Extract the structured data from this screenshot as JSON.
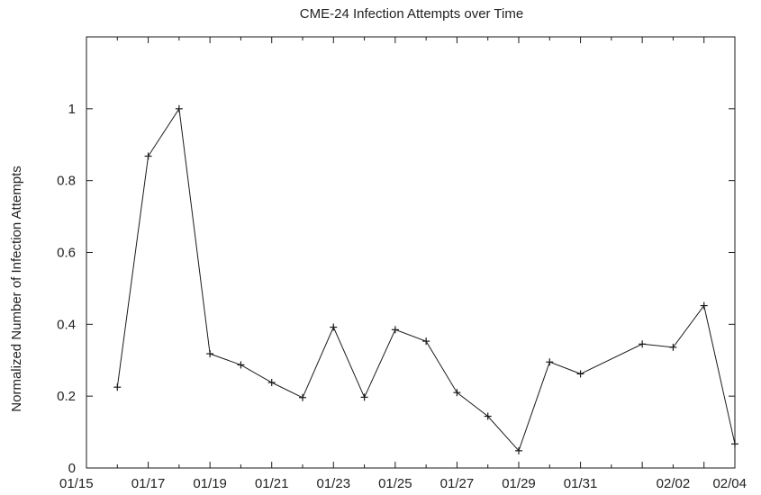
{
  "chart_data": {
    "type": "line",
    "title": "CME-24 Infection Attempts over Time",
    "xlabel": "",
    "ylabel": "Normalized Number of Infection Attempts",
    "x_tick_labels": [
      "01/15",
      "01/17",
      "01/19",
      "01/21",
      "01/23",
      "01/25",
      "01/27",
      "01/29",
      "01/31",
      "02/02",
      "02/04"
    ],
    "y_tick_labels": [
      "0",
      "0.2",
      "0.4",
      "0.6",
      "0.8",
      "1"
    ],
    "ylim": [
      0,
      1.2
    ],
    "grid": false,
    "legend": "none",
    "line_color": "#1a1a1a",
    "marker": "plus",
    "series": [
      {
        "x": [
          "01/16",
          "01/17",
          "01/18",
          "01/19",
          "01/20",
          "01/21",
          "01/22",
          "01/23",
          "01/24",
          "01/25",
          "01/26",
          "01/27",
          "01/28",
          "01/29",
          "01/30",
          "01/31",
          "02/01",
          "02/02",
          "02/03",
          "02/04"
        ],
        "values": [
          0.225,
          0.868,
          1.0,
          0.318,
          0.287,
          0.238,
          0.196,
          0.392,
          0.197,
          0.385,
          0.353,
          0.21,
          0.144,
          0.048,
          0.295,
          0.262,
          0.345,
          0.336,
          0.452,
          0.067
        ]
      }
    ]
  }
}
